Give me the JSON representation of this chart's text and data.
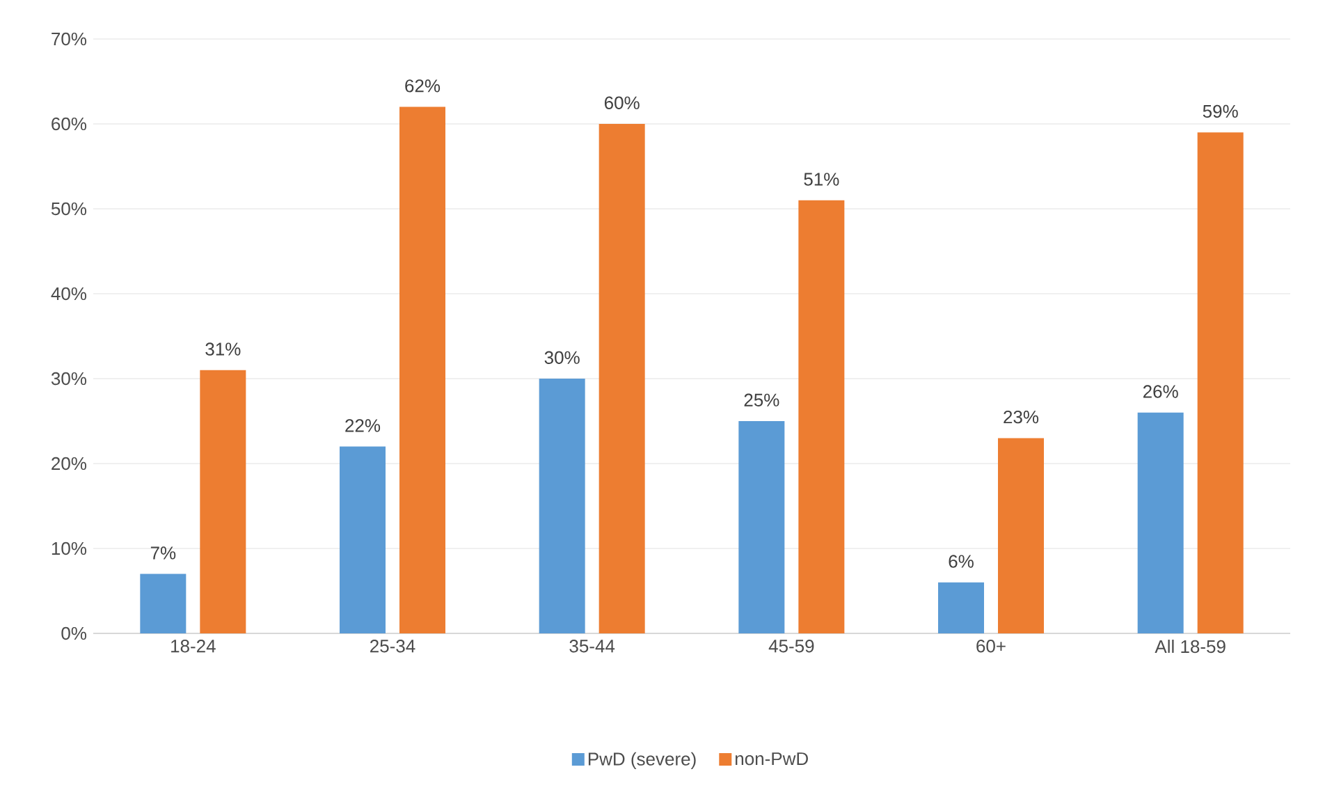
{
  "chart_data": {
    "type": "bar",
    "categories": [
      "18-24",
      "25-34",
      "35-44",
      "45-59",
      "60+",
      "All 18-59"
    ],
    "series": [
      {
        "name": "PwD (severe)",
        "color": "#5b9bd5",
        "values": [
          7,
          22,
          30,
          25,
          6,
          26
        ],
        "value_labels": [
          "7%",
          "22%",
          "30%",
          "25%",
          "6%",
          "26%"
        ]
      },
      {
        "name": "non-PwD",
        "color": "#ed7d31",
        "values": [
          31,
          62,
          60,
          51,
          23,
          59
        ],
        "value_labels": [
          "31%",
          "62%",
          "60%",
          "51%",
          "23%",
          "59%"
        ]
      }
    ],
    "ylim": [
      0,
      70
    ],
    "yticks": [
      {
        "value": 0,
        "label": "0%"
      },
      {
        "value": 10,
        "label": "10%"
      },
      {
        "value": 20,
        "label": "20%"
      },
      {
        "value": 30,
        "label": "30%"
      },
      {
        "value": 40,
        "label": "40%"
      },
      {
        "value": 50,
        "label": "50%"
      },
      {
        "value": 60,
        "label": "60%"
      },
      {
        "value": 70,
        "label": "70%"
      }
    ],
    "grid": "y",
    "legend": "bottom"
  }
}
